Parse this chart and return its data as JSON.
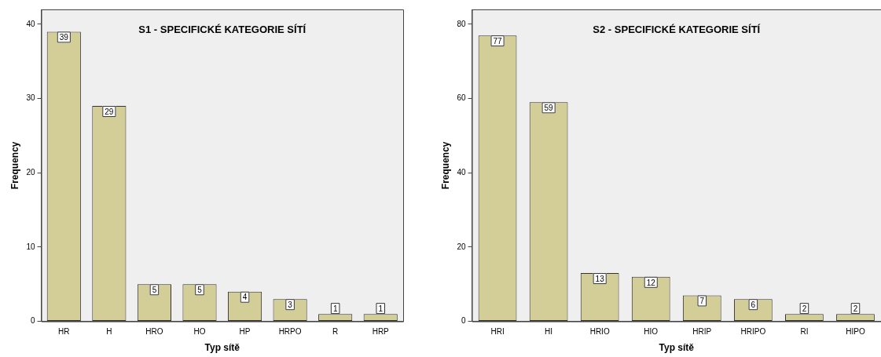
{
  "chart_data": [
    {
      "type": "bar",
      "title": "S1 - SPECIFICKÉ KATEGORIE SÍTÍ",
      "xlabel": "Typ sítě",
      "ylabel": "Frequency",
      "categories": [
        "HR",
        "H",
        "HRO",
        "HO",
        "HP",
        "HRPO",
        "R",
        "HRP"
      ],
      "values": [
        39,
        29,
        5,
        5,
        4,
        3,
        1,
        1
      ],
      "color": "#d3ce97",
      "ylim": [
        0,
        42
      ],
      "yticks": [
        0,
        10,
        20,
        30,
        40
      ],
      "grid": false,
      "legend": false,
      "data_labels": true
    },
    {
      "type": "bar",
      "title": "S2 - SPECIFICKÉ KATEGORIE SÍTÍ",
      "xlabel": "Typ sítě",
      "ylabel": "Frequency",
      "categories": [
        "HRI",
        "HI",
        "HRIO",
        "HIO",
        "HRIP",
        "HRIPO",
        "RI",
        "HIPO"
      ],
      "values": [
        77,
        59,
        13,
        12,
        7,
        6,
        2,
        2
      ],
      "color": "#d3ce97",
      "ylim": [
        0,
        84
      ],
      "yticks": [
        0,
        20,
        40,
        60,
        80
      ],
      "grid": false,
      "legend": false,
      "data_labels": true
    }
  ]
}
